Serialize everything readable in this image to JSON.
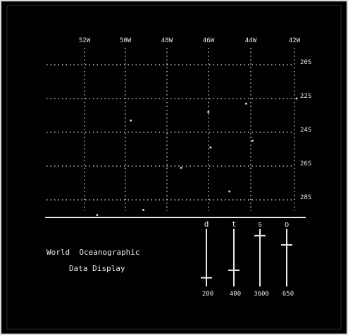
{
  "display": {
    "title_line1": "World  Oceanographic",
    "title_line2": "Data Display"
  },
  "map": {
    "longitude_labels": [
      "52W",
      "50W",
      "48W",
      "46W",
      "44W",
      "42W"
    ],
    "latitude_labels": [
      "20S",
      "22S",
      "24S",
      "26S",
      "28S"
    ],
    "grid": "dotted",
    "data_points": [
      {
        "lon": 46.1,
        "lat": 22.8
      },
      {
        "lon": 44.3,
        "lat": 22.3
      },
      {
        "lon": 41.9,
        "lat": 22.0
      },
      {
        "lon": 49.8,
        "lat": 23.3
      },
      {
        "lon": 44.0,
        "lat": 24.5
      },
      {
        "lon": 46.0,
        "lat": 24.9
      },
      {
        "lon": 45.1,
        "lat": 27.5
      },
      {
        "lon": 47.4,
        "lat": 26.1
      },
      {
        "lon": 51.4,
        "lat": 28.9
      },
      {
        "lon": 49.2,
        "lat": 28.6
      }
    ]
  },
  "sliders": [
    {
      "label": "d",
      "value_label": "200",
      "level": 0.15
    },
    {
      "label": "t",
      "value_label": "400",
      "level": 0.28
    },
    {
      "label": "s",
      "value_label": "3600",
      "level": 0.88
    },
    {
      "label": "o",
      "value_label": "650",
      "level": 0.72
    }
  ],
  "colors": {
    "background": "#000000",
    "phosphor": "#e9ece6",
    "dot": "#cfd3cb",
    "frame": "#d9ddd6"
  }
}
